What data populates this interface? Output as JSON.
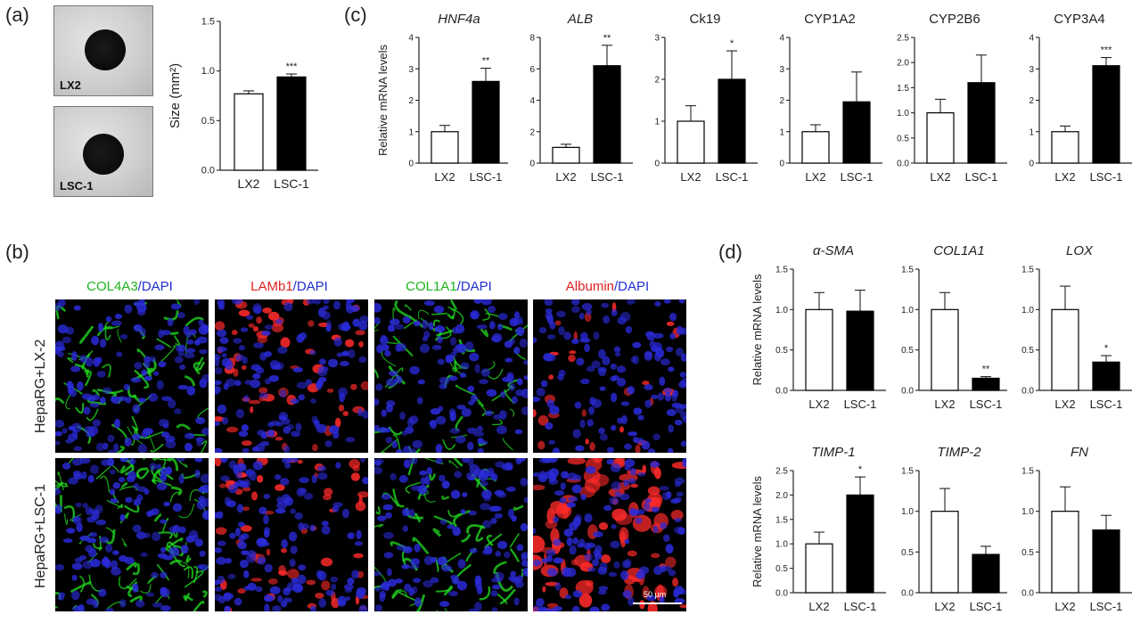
{
  "panels": {
    "a": "(a)",
    "b": "(b)",
    "c": "(c)",
    "d": "(d)"
  },
  "panel_a": {
    "photos": [
      {
        "label": "LX2"
      },
      {
        "label": "LSC-1"
      }
    ]
  },
  "panel_b": {
    "columns": [
      {
        "parts": [
          {
            "text": "COL4A3",
            "color": "#1db41d"
          },
          {
            "text": "/DAPI",
            "color": "#2030d0"
          }
        ]
      },
      {
        "parts": [
          {
            "text": "LAMb1",
            "color": "#e02020"
          },
          {
            "text": "/DAPI",
            "color": "#2030d0"
          }
        ]
      },
      {
        "parts": [
          {
            "text": "COL1A1",
            "color": "#1db41d"
          },
          {
            "text": "/DAPI",
            "color": "#2030d0"
          }
        ]
      },
      {
        "parts": [
          {
            "text": "Albumin",
            "color": "#e02020"
          },
          {
            "text": "/DAPI",
            "color": "#2030d0"
          }
        ]
      }
    ],
    "rows": [
      "HepaRG+LX-2",
      "HepaRG+LSC-1"
    ],
    "scale_bar": "50 μm",
    "colors": {
      "green": "#22e022",
      "red": "#ff2a2a",
      "blue": "#2a2ad8"
    }
  },
  "chart_data": [
    {
      "id": "a_size",
      "type": "bar",
      "title": "",
      "ylabel": "Size (mm²)",
      "categories": [
        "LX2",
        "LSC-1"
      ],
      "values": [
        0.77,
        0.94
      ],
      "errors": [
        0.03,
        0.03
      ],
      "ylim": [
        0,
        1.5
      ],
      "yticks": [
        "0.0",
        "0.5",
        "1.0",
        "1.5"
      ],
      "sig": "***"
    },
    {
      "id": "c_hnf4a",
      "type": "bar",
      "title": "HNF4a",
      "italic": true,
      "ylabel": "Relative mRNA levels",
      "categories": [
        "LX2",
        "LSC-1"
      ],
      "values": [
        1.0,
        2.6
      ],
      "errors": [
        0.2,
        0.42
      ],
      "ylim": [
        0,
        4
      ],
      "yticks": [
        "0",
        "1",
        "2",
        "3",
        "4"
      ],
      "sig": "**"
    },
    {
      "id": "c_alb",
      "type": "bar",
      "title": "ALB",
      "italic": true,
      "ylabel": "",
      "categories": [
        "LX2",
        "LSC-1"
      ],
      "values": [
        1.0,
        6.2
      ],
      "errors": [
        0.2,
        1.3
      ],
      "ylim": [
        0,
        8
      ],
      "yticks": [
        "0",
        "2",
        "4",
        "6",
        "8"
      ],
      "sig": "**"
    },
    {
      "id": "c_ck19",
      "type": "bar",
      "title": "Ck19",
      "italic": false,
      "ylabel": "",
      "categories": [
        "LX2",
        "LSC-1"
      ],
      "values": [
        1.0,
        2.0
      ],
      "errors": [
        0.37,
        0.68
      ],
      "ylim": [
        0,
        3
      ],
      "yticks": [
        "0",
        "1",
        "2",
        "3"
      ],
      "sig": "*"
    },
    {
      "id": "c_cyp1a2",
      "type": "bar",
      "title": "CYP1A2",
      "italic": false,
      "ylabel": "",
      "categories": [
        "LX2",
        "LSC-1"
      ],
      "values": [
        1.0,
        1.95
      ],
      "errors": [
        0.22,
        0.95
      ],
      "ylim": [
        0,
        4
      ],
      "yticks": [
        "0",
        "1",
        "2",
        "3",
        "4"
      ],
      "sig": ""
    },
    {
      "id": "c_cyp2b6",
      "type": "bar",
      "title": "CYP2B6",
      "italic": false,
      "ylabel": "",
      "categories": [
        "LX2",
        "LSC-1"
      ],
      "values": [
        1.0,
        1.6
      ],
      "errors": [
        0.27,
        0.55
      ],
      "ylim": [
        0,
        2.5
      ],
      "yticks": [
        "0.0",
        "0.5",
        "1.0",
        "1.5",
        "2.0",
        "2.5"
      ],
      "sig": ""
    },
    {
      "id": "c_cyp3a4",
      "type": "bar",
      "title": "CYP3A4",
      "italic": false,
      "ylabel": "",
      "categories": [
        "LX2",
        "LSC-1"
      ],
      "values": [
        1.0,
        3.1
      ],
      "errors": [
        0.18,
        0.26
      ],
      "ylim": [
        0,
        4
      ],
      "yticks": [
        "0",
        "1",
        "2",
        "3",
        "4"
      ],
      "sig": "***"
    },
    {
      "id": "d_asma",
      "type": "bar",
      "title": "α-SMA",
      "italic": true,
      "ylabel": "Relative mRNA levels",
      "categories": [
        "LX2",
        "LSC-1"
      ],
      "values": [
        1.0,
        0.98
      ],
      "errors": [
        0.21,
        0.26
      ],
      "ylim": [
        0,
        1.5
      ],
      "yticks": [
        "0.0",
        "0.5",
        "1.0",
        "1.5"
      ],
      "sig": ""
    },
    {
      "id": "d_col1a1",
      "type": "bar",
      "title": "COL1A1",
      "italic": true,
      "ylabel": "",
      "categories": [
        "LX2",
        "LSC-1"
      ],
      "values": [
        1.0,
        0.15
      ],
      "errors": [
        0.21,
        0.02
      ],
      "ylim": [
        0,
        1.5
      ],
      "yticks": [
        "0.0",
        "0.5",
        "1.0",
        "1.5"
      ],
      "sig": "**"
    },
    {
      "id": "d_lox",
      "type": "bar",
      "title": "LOX",
      "italic": true,
      "ylabel": "",
      "categories": [
        "LX2",
        "LSC-1"
      ],
      "values": [
        1.0,
        0.35
      ],
      "errors": [
        0.29,
        0.08
      ],
      "ylim": [
        0,
        1.5
      ],
      "yticks": [
        "0.0",
        "0.5",
        "1.0",
        "1.5"
      ],
      "sig": "*"
    },
    {
      "id": "d_timp1",
      "type": "bar",
      "title": "TIMP-1",
      "italic": true,
      "ylabel": "Relative mRNA levels",
      "categories": [
        "LX2",
        "LSC-1"
      ],
      "values": [
        1.0,
        2.0
      ],
      "errors": [
        0.24,
        0.37
      ],
      "ylim": [
        0,
        2.5
      ],
      "yticks": [
        "0.0",
        "0.5",
        "1.0",
        "1.5",
        "2.0",
        "2.5"
      ],
      "sig": "*"
    },
    {
      "id": "d_timp2",
      "type": "bar",
      "title": "TIMP-2",
      "italic": true,
      "ylabel": "",
      "categories": [
        "LX2",
        "LSC-1"
      ],
      "values": [
        1.0,
        0.47
      ],
      "errors": [
        0.28,
        0.1
      ],
      "ylim": [
        0,
        1.5
      ],
      "yticks": [
        "0.0",
        "0.5",
        "1.0",
        "1.5"
      ],
      "sig": ""
    },
    {
      "id": "d_fn",
      "type": "bar",
      "title": "FN",
      "italic": true,
      "ylabel": "",
      "categories": [
        "LX2",
        "LSC-1"
      ],
      "values": [
        1.0,
        0.77
      ],
      "errors": [
        0.3,
        0.18
      ],
      "ylim": [
        0,
        1.5
      ],
      "yticks": [
        "0.0",
        "0.5",
        "1.0",
        "1.5"
      ],
      "sig": ""
    }
  ]
}
